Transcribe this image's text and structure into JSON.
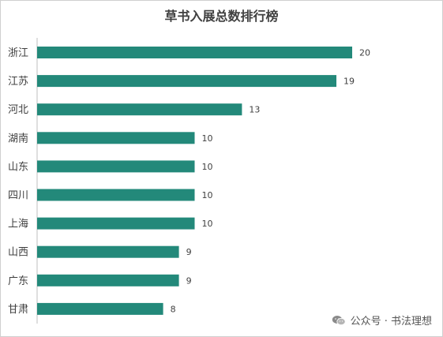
{
  "chart_data": {
    "type": "bar",
    "orientation": "horizontal",
    "title": "草书入展总数排行榜",
    "categories": [
      "浙江",
      "江苏",
      "河北",
      "湖南",
      "山东",
      "四川",
      "上海",
      "山西",
      "广东",
      "甘肃"
    ],
    "values": [
      20,
      19,
      13,
      10,
      10,
      10,
      10,
      9,
      9,
      8
    ],
    "xlim": [
      0,
      20
    ],
    "grid": false,
    "legend": "none",
    "bar_color": "#23897a"
  },
  "watermark": {
    "text": "公众号 · 书法理想",
    "icon": "wechat-icon"
  }
}
